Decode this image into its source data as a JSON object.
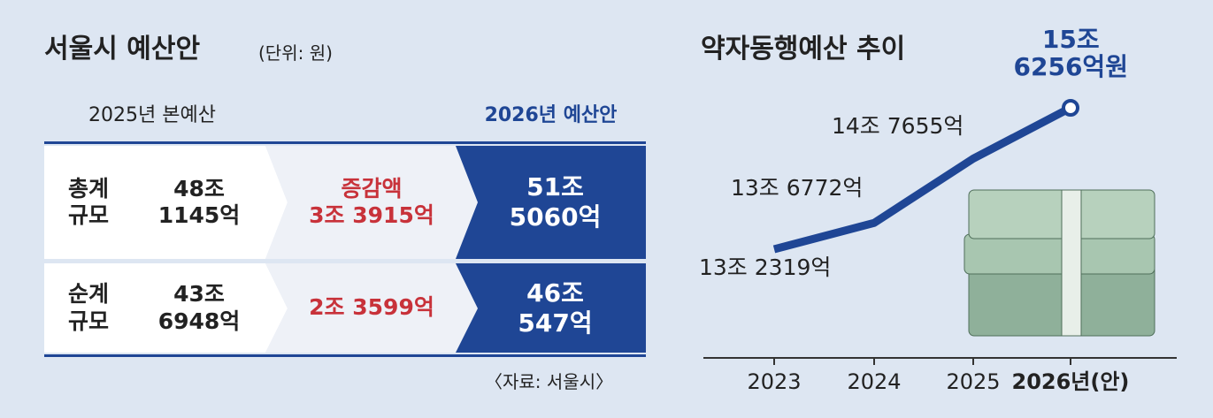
{
  "title": "서울시 예산안",
  "unit": "(단위: 원)",
  "table": {
    "header": [
      "2025년 본예산",
      "2026년 예산안"
    ],
    "rows": [
      {
        "label": "총계\n규모",
        "base": "48조\n1145억",
        "change": "증감액\n3조 3915억",
        "proposal": "51조\n5060억"
      },
      {
        "label": "순계\n규모",
        "base": "43조\n6948억",
        "change": "2조 3599억",
        "proposal": "46조\n547억"
      }
    ]
  },
  "source": "〈자료: 서울시〉",
  "chart_data": {
    "type": "line",
    "title": "약자동행예산 추이",
    "categories": [
      "2023",
      "2024",
      "2025",
      "2026년(안)"
    ],
    "values": [
      132319,
      136772,
      147655,
      156256
    ],
    "value_labels": [
      "13조 2319억",
      "13조 6772억",
      "14조 7655억",
      "15조\n6256억원"
    ],
    "color": "#1f4695"
  }
}
